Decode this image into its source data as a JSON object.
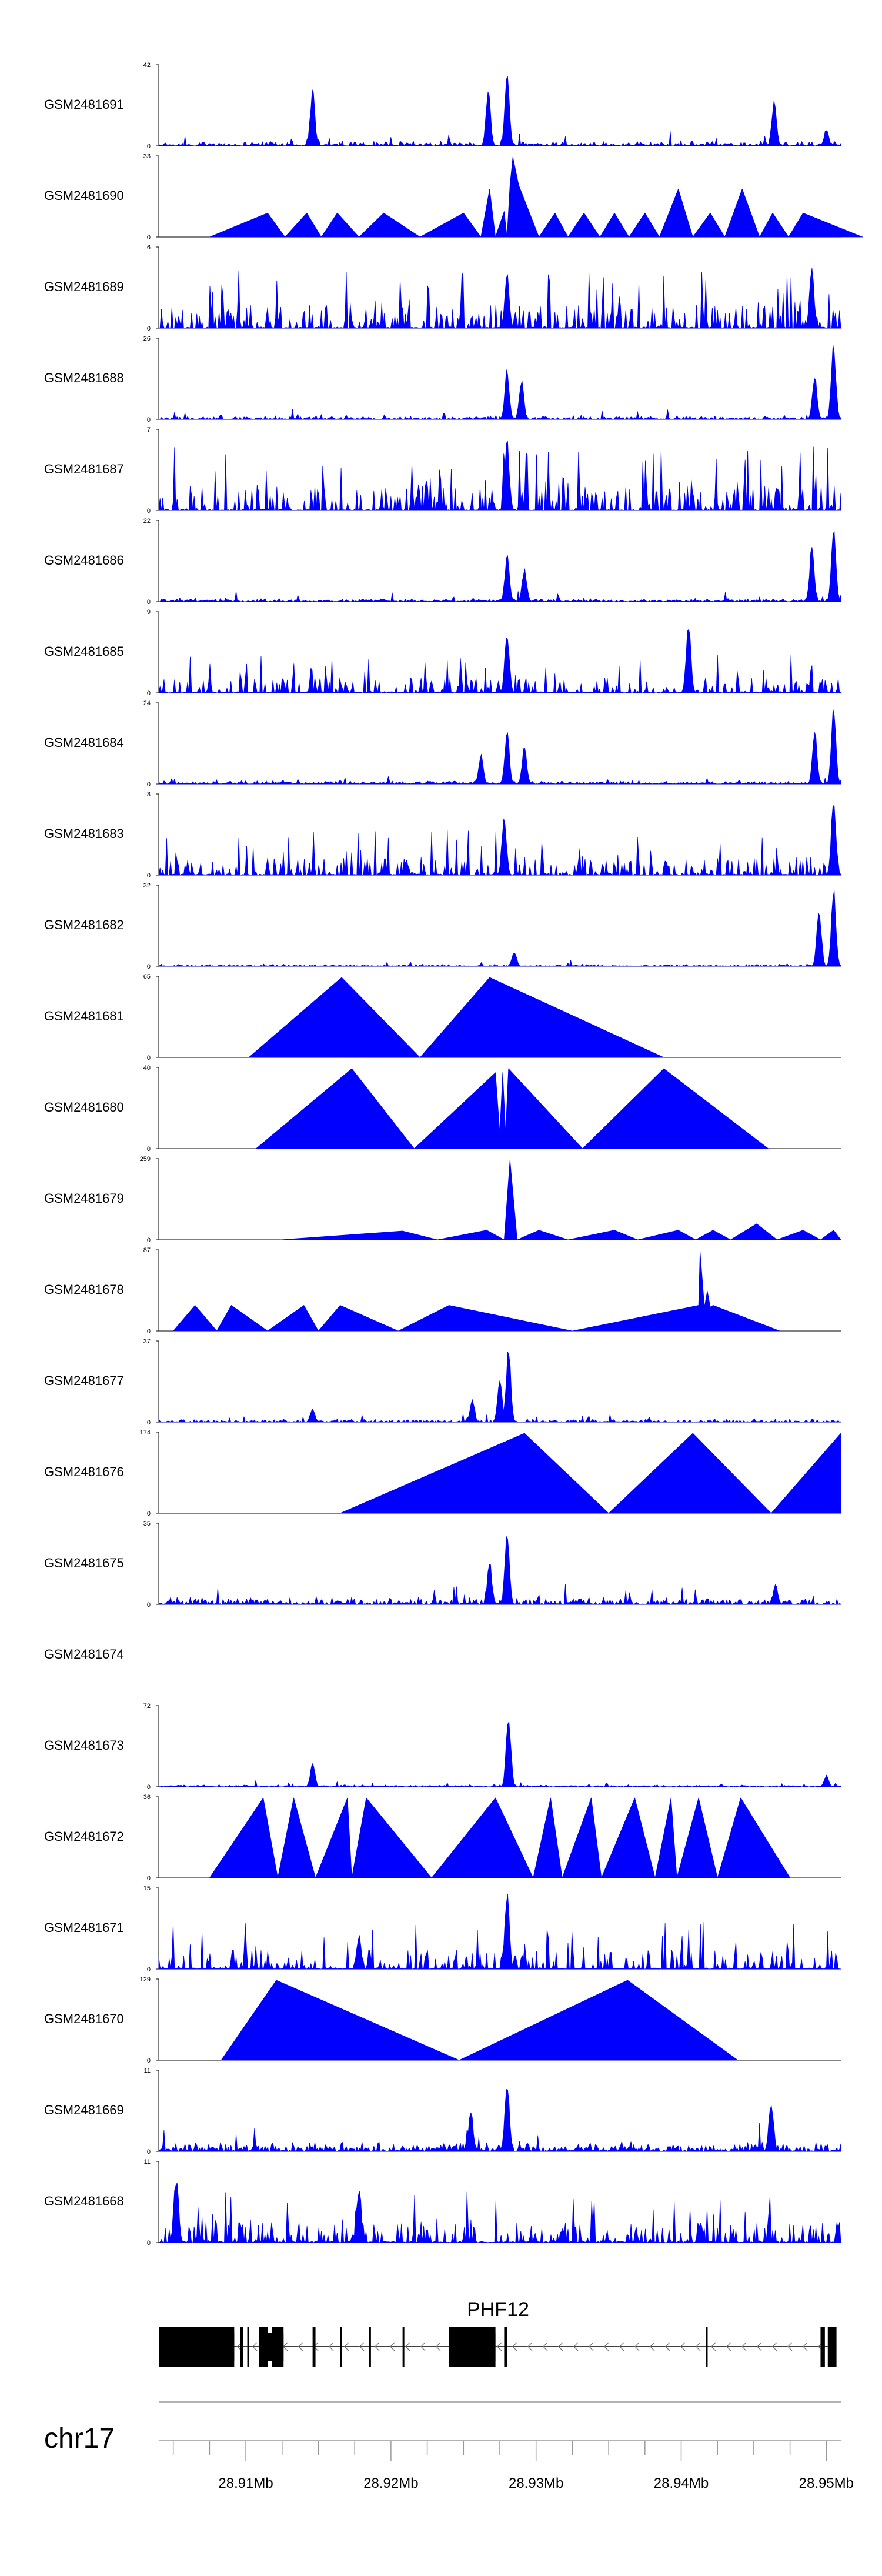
{
  "chart_data": {
    "type": "area",
    "title": "",
    "color": "#0000ff",
    "chromosome": "chr17",
    "gene": "PHF12",
    "x_range_mb": [
      28.904,
      28.951
    ],
    "x_ticks": [
      {
        "value": 28.91,
        "label": "28.91Mb"
      },
      {
        "value": 28.92,
        "label": "28.92Mb"
      },
      {
        "value": 28.93,
        "label": "28.93Mb"
      },
      {
        "value": 28.94,
        "label": "28.94Mb"
      },
      {
        "value": 28.95,
        "label": "28.95Mb"
      }
    ],
    "tracks": [
      {
        "name": "GSM2481691",
        "ymax": 42,
        "ymin": 0,
        "style": "noise",
        "seed": 11,
        "base": 0.07,
        "peaks": [
          [
            28.9146,
            0.75
          ],
          [
            28.9267,
            0.72
          ],
          [
            28.928,
            1.0
          ],
          [
            28.9464,
            0.6
          ],
          [
            28.95,
            0.22
          ]
        ]
      },
      {
        "name": "GSM2481690",
        "ymax": 33,
        "ymin": 0,
        "style": "tri",
        "points": [
          [
            28.9075,
            0
          ],
          [
            28.9115,
            0.3
          ],
          [
            28.9127,
            0
          ],
          [
            28.9142,
            0.3
          ],
          [
            28.9152,
            0
          ],
          [
            28.9163,
            0.3
          ],
          [
            28.9178,
            0
          ],
          [
            28.9195,
            0.3
          ],
          [
            28.922,
            0
          ],
          [
            28.925,
            0.3
          ],
          [
            28.9262,
            0
          ],
          [
            28.9268,
            0.6
          ],
          [
            28.9272,
            0
          ],
          [
            28.9278,
            0.32
          ],
          [
            28.928,
            0
          ],
          [
            28.9282,
            0.65
          ],
          [
            28.9284,
            1.0
          ],
          [
            28.9288,
            0.65
          ],
          [
            28.9302,
            0
          ],
          [
            28.9313,
            0.3
          ],
          [
            28.9322,
            0
          ],
          [
            28.9333,
            0.3
          ],
          [
            28.9344,
            0
          ],
          [
            28.9354,
            0.3
          ],
          [
            28.9364,
            0
          ],
          [
            28.9375,
            0.3
          ],
          [
            28.9385,
            0
          ],
          [
            28.9398,
            0.6
          ],
          [
            28.9408,
            0
          ],
          [
            28.942,
            0.3
          ],
          [
            28.943,
            0
          ],
          [
            28.9442,
            0.6
          ],
          [
            28.9454,
            0
          ],
          [
            28.9463,
            0.3
          ],
          [
            28.9474,
            0
          ],
          [
            28.9484,
            0.3
          ],
          [
            28.9525,
            0
          ]
        ]
      },
      {
        "name": "GSM2481689",
        "ymax": 6,
        "ymin": 0,
        "style": "spiky",
        "seed": 23,
        "base": 0.18,
        "peaks": [
          [
            28.928,
            0.7
          ],
          [
            28.949,
            0.8
          ]
        ]
      },
      {
        "name": "GSM2481688",
        "ymax": 26,
        "ymin": 0,
        "style": "noise",
        "seed": 31,
        "base": 0.05,
        "peaks": [
          [
            28.928,
            0.65
          ],
          [
            28.929,
            0.5
          ],
          [
            28.9492,
            0.6
          ],
          [
            28.9505,
            1.0
          ]
        ]
      },
      {
        "name": "GSM2481687",
        "ymax": 7,
        "ymin": 0,
        "style": "spiky",
        "seed": 37,
        "base": 0.2,
        "peaks": [
          [
            28.928,
            0.9
          ]
        ]
      },
      {
        "name": "GSM2481686",
        "ymax": 22,
        "ymin": 0,
        "style": "noise",
        "seed": 41,
        "base": 0.05,
        "peaks": [
          [
            28.928,
            0.6
          ],
          [
            28.9292,
            0.45
          ],
          [
            28.949,
            0.7
          ],
          [
            28.9505,
            1.0
          ]
        ]
      },
      {
        "name": "GSM2481685",
        "ymax": 9,
        "ymin": 0,
        "style": "spiky",
        "seed": 43,
        "base": 0.12,
        "peaks": [
          [
            28.928,
            0.85
          ],
          [
            28.9405,
            0.95
          ]
        ]
      },
      {
        "name": "GSM2481684",
        "ymax": 24,
        "ymin": 0,
        "style": "noise",
        "seed": 47,
        "base": 0.05,
        "peaks": [
          [
            28.9262,
            0.4
          ],
          [
            28.928,
            0.7
          ],
          [
            28.9292,
            0.5
          ],
          [
            28.9492,
            0.7
          ],
          [
            28.9505,
            1.0
          ]
        ]
      },
      {
        "name": "GSM2481683",
        "ymax": 8,
        "ymin": 0,
        "style": "spiky",
        "seed": 53,
        "base": 0.14,
        "peaks": [
          [
            28.9278,
            0.8
          ],
          [
            28.9505,
            1.0
          ]
        ]
      },
      {
        "name": "GSM2481682",
        "ymax": 32,
        "ymin": 0,
        "style": "noise",
        "seed": 59,
        "base": 0.03,
        "peaks": [
          [
            28.9285,
            0.2
          ],
          [
            28.9495,
            0.8
          ],
          [
            28.9505,
            1.0
          ]
        ]
      },
      {
        "name": "GSM2481681",
        "ymax": 65,
        "ymin": 0,
        "style": "tri",
        "points": [
          [
            28.9102,
            0
          ],
          [
            28.9166,
            1.0
          ],
          [
            28.922,
            0
          ],
          [
            28.9268,
            1.0
          ],
          [
            28.9388,
            0
          ]
        ]
      },
      {
        "name": "GSM2481680",
        "ymax": 40,
        "ymin": 0,
        "style": "tri",
        "points": [
          [
            28.9107,
            0
          ],
          [
            28.9173,
            1.0
          ],
          [
            28.9216,
            0
          ],
          [
            28.9272,
            0.95
          ],
          [
            28.9275,
            0.2
          ],
          [
            28.9277,
            0.95
          ],
          [
            28.9279,
            0.2
          ],
          [
            28.9281,
            1.0
          ],
          [
            28.9332,
            0
          ],
          [
            28.9388,
            1.0
          ],
          [
            28.946,
            0
          ]
        ]
      },
      {
        "name": "GSM2481679",
        "ymax": 259,
        "ymin": 0,
        "style": "tri",
        "points": [
          [
            28.9124,
            0
          ],
          [
            28.9208,
            0.11
          ],
          [
            28.9232,
            0
          ],
          [
            28.9266,
            0.12
          ],
          [
            28.9278,
            0
          ],
          [
            28.9282,
            1.0
          ],
          [
            28.9287,
            0
          ],
          [
            28.9302,
            0.12
          ],
          [
            28.9322,
            0
          ],
          [
            28.9354,
            0.12
          ],
          [
            28.937,
            0
          ],
          [
            28.9398,
            0.12
          ],
          [
            28.941,
            0
          ],
          [
            28.9422,
            0.12
          ],
          [
            28.9434,
            0
          ],
          [
            28.9452,
            0.2
          ],
          [
            28.9466,
            0
          ],
          [
            28.9484,
            0.12
          ],
          [
            28.9496,
            0
          ],
          [
            28.9505,
            0.12
          ],
          [
            28.951,
            0
          ]
        ]
      },
      {
        "name": "GSM2481678",
        "ymax": 87,
        "ymin": 0,
        "style": "tri",
        "points": [
          [
            28.905,
            0
          ],
          [
            28.9065,
            0.32
          ],
          [
            28.908,
            0
          ],
          [
            28.909,
            0.32
          ],
          [
            28.9115,
            0
          ],
          [
            28.914,
            0.32
          ],
          [
            28.915,
            0
          ],
          [
            28.9165,
            0.32
          ],
          [
            28.9205,
            0
          ],
          [
            28.924,
            0.32
          ],
          [
            28.9325,
            0
          ],
          [
            28.9412,
            0.32
          ],
          [
            28.9413,
            1.0
          ],
          [
            28.9416,
            0.3
          ],
          [
            28.9418,
            0.5
          ],
          [
            28.942,
            0.3
          ],
          [
            28.9422,
            0.32
          ],
          [
            28.9468,
            0
          ]
        ]
      },
      {
        "name": "GSM2481677",
        "ymax": 37,
        "ymin": 0,
        "style": "noise",
        "seed": 61,
        "base": 0.04,
        "peaks": [
          [
            28.9146,
            0.18
          ],
          [
            28.9256,
            0.3
          ],
          [
            28.9275,
            0.6
          ],
          [
            28.9281,
            1.0
          ]
        ]
      },
      {
        "name": "GSM2481676",
        "ymax": 174,
        "ymin": 0,
        "style": "tri",
        "points": [
          [
            28.9165,
            0
          ],
          [
            28.9292,
            1.0
          ],
          [
            28.935,
            0
          ],
          [
            28.9408,
            1.0
          ],
          [
            28.9462,
            0
          ],
          [
            28.951,
            1.0
          ]
        ]
      },
      {
        "name": "GSM2481675",
        "ymax": 35,
        "ymin": 0,
        "style": "noise",
        "seed": 67,
        "base": 0.1,
        "peaks": [
          [
            28.9268,
            0.55
          ],
          [
            28.928,
            1.0
          ],
          [
            28.9465,
            0.25
          ]
        ]
      },
      {
        "name": "GSM2481674",
        "ymax": null,
        "ymin": null,
        "style": "empty"
      },
      {
        "name": "GSM2481673",
        "ymax": 72,
        "ymin": 0,
        "style": "noise",
        "seed": 71,
        "base": 0.03,
        "peaks": [
          [
            28.9146,
            0.3
          ],
          [
            28.9281,
            1.0
          ],
          [
            28.95,
            0.15
          ]
        ]
      },
      {
        "name": "GSM2481672",
        "ymax": 36,
        "ymin": 0,
        "style": "tri",
        "points": [
          [
            28.9075,
            0
          ],
          [
            28.9112,
            1.0
          ],
          [
            28.9122,
            0
          ],
          [
            28.9133,
            1.0
          ],
          [
            28.9148,
            0
          ],
          [
            28.917,
            1.0
          ],
          [
            28.9173,
            0
          ],
          [
            28.9183,
            1.0
          ],
          [
            28.9228,
            0
          ],
          [
            28.9272,
            1.0
          ],
          [
            28.9298,
            0
          ],
          [
            28.931,
            1.0
          ],
          [
            28.9318,
            0
          ],
          [
            28.9338,
            1.0
          ],
          [
            28.9345,
            0
          ],
          [
            28.9368,
            1.0
          ],
          [
            28.9382,
            0
          ],
          [
            28.9393,
            1.0
          ],
          [
            28.9397,
            0
          ],
          [
            28.9412,
            1.0
          ],
          [
            28.9425,
            0
          ],
          [
            28.9441,
            1.0
          ],
          [
            28.9475,
            0
          ]
        ]
      },
      {
        "name": "GSM2481671",
        "ymax": 15,
        "ymin": 0,
        "style": "spiky",
        "seed": 73,
        "base": 0.15,
        "peaks": [
          [
            28.9178,
            0.45
          ],
          [
            28.928,
            1.0
          ]
        ]
      },
      {
        "name": "GSM2481670",
        "ymax": 129,
        "ymin": 0,
        "style": "tri",
        "points": [
          [
            28.9083,
            0
          ],
          [
            28.9121,
            1.0
          ],
          [
            28.9247,
            0
          ],
          [
            28.9363,
            1.0
          ],
          [
            28.9439,
            0
          ]
        ]
      },
      {
        "name": "GSM2481669",
        "ymax": 11,
        "ymin": 0,
        "style": "noise",
        "seed": 79,
        "base": 0.14,
        "peaks": [
          [
            28.9255,
            0.55
          ],
          [
            28.928,
            1.0
          ],
          [
            28.9462,
            0.7
          ]
        ]
      },
      {
        "name": "GSM2481668",
        "ymax": 11,
        "ymin": 0,
        "style": "spiky",
        "seed": 83,
        "base": 0.16,
        "peaks": [
          [
            28.9052,
            0.9
          ],
          [
            28.9178,
            0.75
          ]
        ]
      }
    ],
    "gene_model": {
      "name": "PHF12",
      "strand": "-",
      "span": [
        28.904,
        28.9507
      ],
      "exons": [
        [
          28.904,
          28.9092
        ],
        [
          28.9096,
          28.9098
        ],
        [
          28.9101,
          28.9102
        ],
        [
          28.9109,
          28.9113
        ],
        [
          28.9113,
          28.9115
        ],
        [
          28.9118,
          28.9126
        ],
        [
          28.9146,
          28.9148
        ],
        [
          28.9165,
          28.9166
        ],
        [
          28.9185,
          28.9186
        ],
        [
          28.9208,
          28.9209
        ],
        [
          28.924,
          28.9272
        ],
        [
          28.9278,
          28.928
        ],
        [
          28.9417,
          28.9418
        ],
        [
          28.9496,
          28.9499
        ],
        [
          28.9501,
          28.9507
        ]
      ],
      "thick": [
        [
          28.904,
          28.9092
        ],
        [
          28.9109,
          28.9126
        ],
        [
          28.924,
          28.9272
        ]
      ]
    }
  }
}
